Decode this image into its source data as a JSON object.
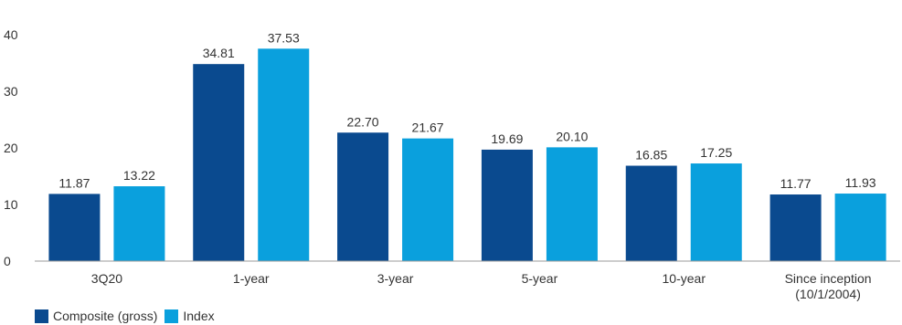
{
  "chart_data": {
    "type": "bar",
    "categories": [
      [
        "3Q20"
      ],
      [
        "1-year"
      ],
      [
        "3-year"
      ],
      [
        "5-year"
      ],
      [
        "10-year"
      ],
      [
        "Since inception",
        "(10/1/2004)"
      ]
    ],
    "series": [
      {
        "name": "Composite (gross)",
        "color": "#0a4a8f",
        "values": [
          11.87,
          34.81,
          22.7,
          19.69,
          16.85,
          11.77
        ]
      },
      {
        "name": "Index",
        "color": "#0aa0dd",
        "values": [
          13.22,
          37.53,
          21.67,
          20.1,
          17.25,
          11.93
        ]
      }
    ],
    "data_labels": [
      [
        "11.87",
        "34.81",
        "22.70",
        "19.69",
        "16.85",
        "11.77"
      ],
      [
        "13.22",
        "37.53",
        "21.67",
        "20.10",
        "17.25",
        "11.93"
      ]
    ],
    "ylim": [
      0,
      40
    ],
    "yticks": [
      0,
      10,
      20,
      30,
      40
    ],
    "grid": false,
    "legend_position": "bottom-left",
    "axis_color": "#999999"
  }
}
